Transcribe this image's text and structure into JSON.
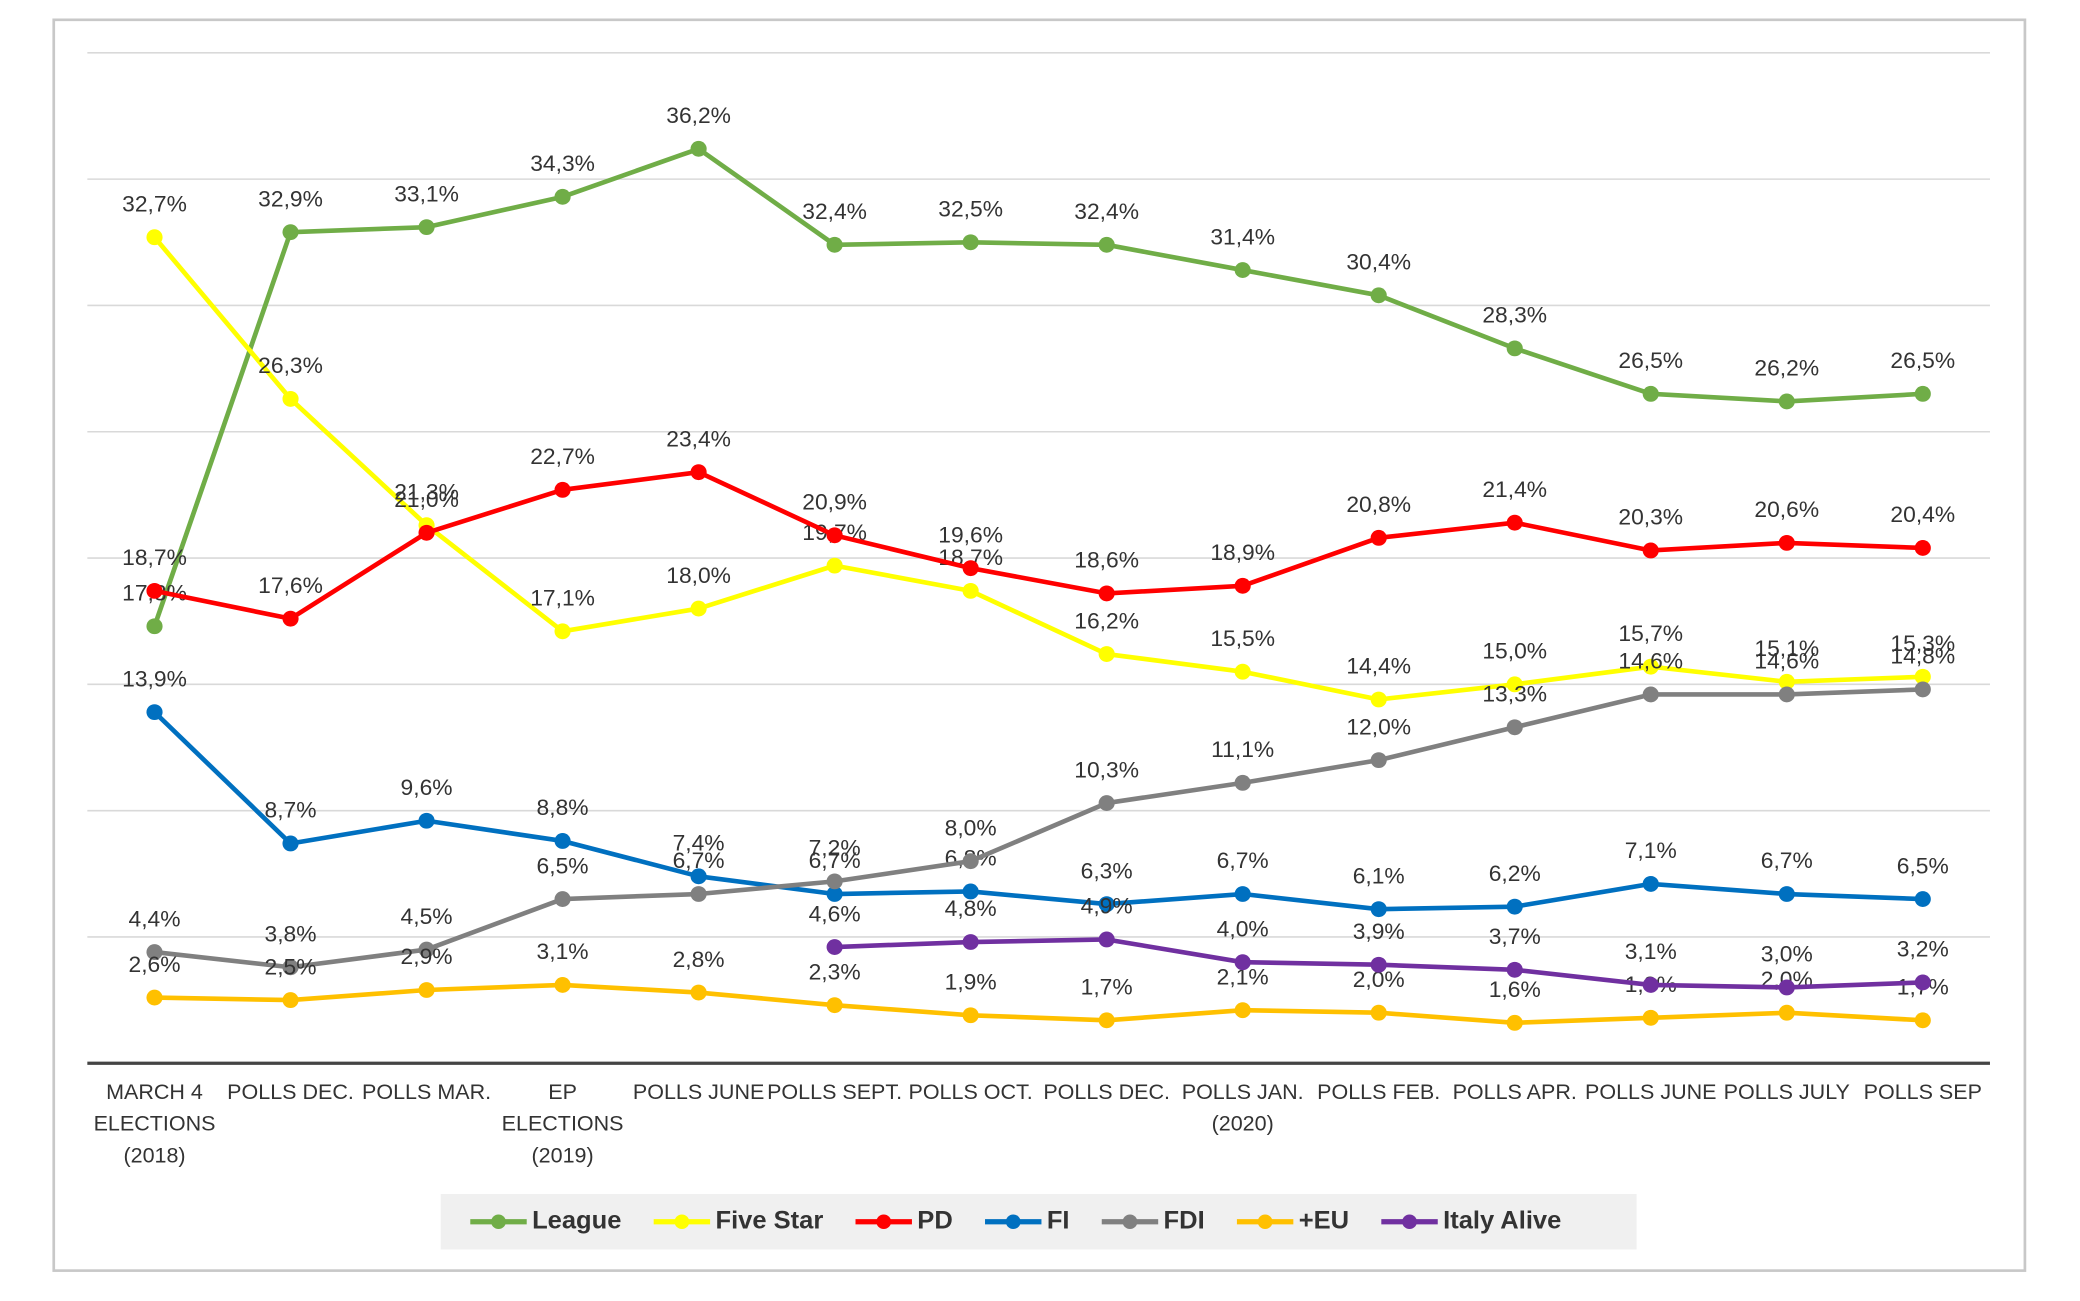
{
  "chart_data": {
    "type": "line",
    "categories": [
      "MARCH 4\nELECTIONS\n(2018)",
      "POLLS DEC.",
      "POLLS MAR.",
      "EP\nELECTIONS\n(2019)",
      "POLLS JUNE",
      "POLLS SEPT.",
      "POLLS OCT.",
      "POLLS DEC.",
      "POLLS JAN.\n(2020)",
      "POLLS FEB.",
      "POLLS APR.",
      "POLLS JUNE",
      "POLLS JULY",
      "POLLS SEP"
    ],
    "ylim": [
      0,
      40
    ],
    "yticks": [
      0,
      5,
      10,
      15,
      20,
      25,
      30,
      35,
      40
    ],
    "grid": true,
    "legend": "bottom",
    "series": [
      {
        "name": "League",
        "color": "#70ad47",
        "values": [
          17.3,
          32.9,
          33.1,
          34.3,
          36.2,
          32.4,
          32.5,
          32.4,
          31.4,
          30.4,
          28.3,
          26.5,
          26.2,
          26.5
        ],
        "value_labels": [
          "17,3%",
          "32,9%",
          "33,1%",
          "34,3%",
          "36,2%",
          "32,4%",
          "32,5%",
          "32,4%",
          "31,4%",
          "30,4%",
          "28,3%",
          "26,5%",
          "26,2%",
          "26,5%"
        ]
      },
      {
        "name": "Five Star",
        "color": "#ffff00",
        "values": [
          32.7,
          26.3,
          21.3,
          17.1,
          18.0,
          19.7,
          18.7,
          16.2,
          15.5,
          14.4,
          15.0,
          15.7,
          15.1,
          15.3
        ],
        "value_labels": [
          "32,7%",
          "26,3%",
          "21,3%",
          "17,1%",
          "18,0%",
          "19,7%",
          "18,7%",
          "16,2%",
          "15,5%",
          "14,4%",
          "15,0%",
          "15,7%",
          "15,1%",
          "15,3%"
        ]
      },
      {
        "name": "PD",
        "color": "#ff0000",
        "values": [
          18.7,
          17.6,
          21.0,
          22.7,
          23.4,
          20.9,
          19.6,
          18.6,
          18.9,
          20.8,
          21.4,
          20.3,
          20.6,
          20.4
        ],
        "value_labels": [
          "18,7%",
          "17,6%",
          "21,0%",
          "22,7%",
          "23,4%",
          "20,9%",
          "19,6%",
          "18,6%",
          "18,9%",
          "20,8%",
          "21,4%",
          "20,3%",
          "20,6%",
          "20,4%"
        ]
      },
      {
        "name": "FI",
        "color": "#0070c0",
        "values": [
          13.9,
          8.7,
          9.6,
          8.8,
          7.4,
          6.7,
          6.8,
          6.3,
          6.7,
          6.1,
          6.2,
          7.1,
          6.7,
          6.5
        ],
        "value_labels": [
          "13,9%",
          "8,7%",
          "9,6%",
          "8,8%",
          "7,4%",
          "6,7%",
          "6,8%",
          "6,3%",
          "6,7%",
          "6,1%",
          "6,2%",
          "7,1%",
          "6,7%",
          "6,5%"
        ]
      },
      {
        "name": "FDI",
        "color": "#808080",
        "values": [
          4.4,
          3.8,
          4.5,
          6.5,
          6.7,
          7.2,
          8.0,
          10.3,
          11.1,
          12.0,
          13.3,
          14.6,
          14.6,
          14.8
        ],
        "value_labels": [
          "4,4%",
          "3,8%",
          "4,5%",
          "6,5%",
          "6,7%",
          "7,2%",
          "8,0%",
          "10,3%",
          "11,1%",
          "12,0%",
          "13,3%",
          "14,6%",
          "14,6%",
          "14,8%"
        ]
      },
      {
        "name": "+EU",
        "color": "#ffc000",
        "values": [
          2.6,
          2.5,
          2.9,
          3.1,
          2.8,
          2.3,
          1.9,
          1.7,
          2.1,
          2.0,
          1.6,
          1.8,
          2.0,
          1.7
        ],
        "value_labels": [
          "2,6%",
          "2,5%",
          "2,9%",
          "3,1%",
          "2,8%",
          "2,3%",
          "1,9%",
          "1,7%",
          "2,1%",
          "2,0%",
          "1,6%",
          "1,8%",
          "2,0%",
          "1,7%"
        ]
      },
      {
        "name": "Italy Alive",
        "color": "#7030a0",
        "values": [
          null,
          null,
          null,
          null,
          null,
          4.6,
          4.8,
          4.9,
          4.0,
          3.9,
          3.7,
          3.1,
          3.0,
          3.2
        ],
        "value_labels": [
          null,
          null,
          null,
          null,
          null,
          "4,6%",
          "4,8%",
          "4,9%",
          "4,0%",
          "3,9%",
          "3,7%",
          "3,1%",
          "3,0%",
          "3,2%"
        ]
      }
    ]
  }
}
